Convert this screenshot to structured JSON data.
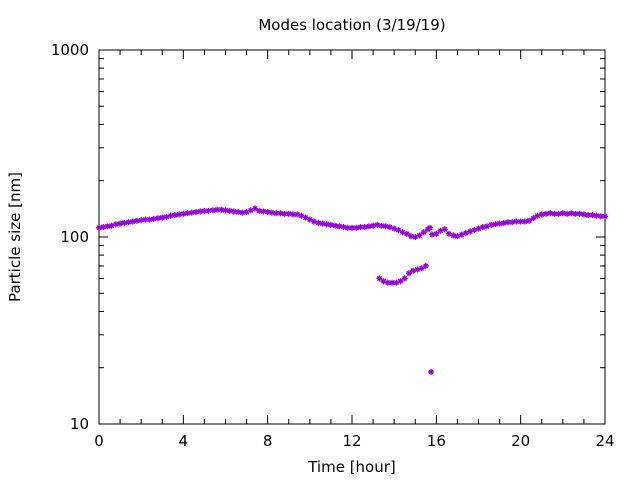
{
  "chart_data": {
    "type": "scatter",
    "title": "Modes location (3/19/19)",
    "xlabel": "Time [hour]",
    "ylabel": "Particle size [nm]",
    "xlim": [
      0,
      24
    ],
    "ylim": [
      10,
      1000
    ],
    "yscale": "log",
    "grid": false,
    "legend": "none",
    "marker_color": "#9400d3",
    "xticks": [
      0,
      4,
      8,
      12,
      16,
      20,
      24
    ],
    "xtick_labels": [
      "0",
      "4",
      "8",
      "12",
      "16",
      "20",
      "24"
    ],
    "yticks": [
      10,
      100,
      1000
    ],
    "ytick_labels": [
      "10",
      "100",
      "1000"
    ],
    "series": [
      {
        "points": [
          [
            0.0,
            112
          ],
          [
            0.2,
            113
          ],
          [
            0.4,
            114
          ],
          [
            0.6,
            115
          ],
          [
            0.8,
            117
          ],
          [
            1.0,
            118
          ],
          [
            1.2,
            119
          ],
          [
            1.4,
            120
          ],
          [
            1.6,
            121
          ],
          [
            1.8,
            122
          ],
          [
            2.0,
            123
          ],
          [
            2.2,
            124
          ],
          [
            2.4,
            124
          ],
          [
            2.6,
            125
          ],
          [
            2.8,
            126
          ],
          [
            3.0,
            127
          ],
          [
            3.2,
            128
          ],
          [
            3.4,
            130
          ],
          [
            3.6,
            131
          ],
          [
            3.8,
            132
          ],
          [
            4.0,
            133
          ],
          [
            4.2,
            134
          ],
          [
            4.4,
            135
          ],
          [
            4.6,
            136
          ],
          [
            4.8,
            137
          ],
          [
            5.0,
            138
          ],
          [
            5.2,
            138
          ],
          [
            5.4,
            139
          ],
          [
            5.6,
            140
          ],
          [
            5.8,
            140
          ],
          [
            6.0,
            139
          ],
          [
            6.2,
            138
          ],
          [
            6.4,
            137
          ],
          [
            6.6,
            136
          ],
          [
            6.8,
            135
          ],
          [
            7.0,
            136
          ],
          [
            7.2,
            139
          ],
          [
            7.4,
            142
          ],
          [
            7.6,
            138
          ],
          [
            7.8,
            137
          ],
          [
            8.0,
            136
          ],
          [
            8.2,
            135
          ],
          [
            8.4,
            134
          ],
          [
            8.6,
            134
          ],
          [
            8.8,
            133
          ],
          [
            9.0,
            133
          ],
          [
            9.2,
            132
          ],
          [
            9.4,
            132
          ],
          [
            9.6,
            130
          ],
          [
            9.8,
            127
          ],
          [
            10.0,
            124
          ],
          [
            10.2,
            121
          ],
          [
            10.4,
            119
          ],
          [
            10.6,
            118
          ],
          [
            10.8,
            117
          ],
          [
            11.0,
            116
          ],
          [
            11.2,
            115
          ],
          [
            11.4,
            114
          ],
          [
            11.6,
            113
          ],
          [
            11.8,
            112
          ],
          [
            12.0,
            112
          ],
          [
            12.2,
            112
          ],
          [
            12.4,
            113
          ],
          [
            12.6,
            113
          ],
          [
            12.8,
            114
          ],
          [
            13.0,
            115
          ],
          [
            13.2,
            116
          ],
          [
            13.4,
            115
          ],
          [
            13.6,
            114
          ],
          [
            13.8,
            113
          ],
          [
            14.0,
            111
          ],
          [
            14.2,
            109
          ],
          [
            14.4,
            106
          ],
          [
            14.6,
            104
          ],
          [
            14.8,
            101
          ],
          [
            15.0,
            100
          ],
          [
            15.2,
            102
          ],
          [
            15.4,
            106
          ],
          [
            15.6,
            110
          ],
          [
            15.7,
            112
          ],
          [
            15.8,
            103
          ],
          [
            16.0,
            104
          ],
          [
            16.2,
            108
          ],
          [
            16.4,
            110
          ],
          [
            16.6,
            104
          ],
          [
            16.8,
            102
          ],
          [
            17.0,
            101
          ],
          [
            17.2,
            103
          ],
          [
            17.4,
            105
          ],
          [
            17.6,
            107
          ],
          [
            17.8,
            109
          ],
          [
            18.0,
            111
          ],
          [
            18.2,
            113
          ],
          [
            18.4,
            114
          ],
          [
            18.6,
            116
          ],
          [
            18.8,
            117
          ],
          [
            19.0,
            118
          ],
          [
            19.2,
            119
          ],
          [
            19.4,
            120
          ],
          [
            19.6,
            120
          ],
          [
            19.8,
            121
          ],
          [
            20.0,
            121
          ],
          [
            20.2,
            121
          ],
          [
            20.4,
            122
          ],
          [
            20.6,
            126
          ],
          [
            20.8,
            130
          ],
          [
            21.0,
            132
          ],
          [
            21.2,
            133
          ],
          [
            21.4,
            134
          ],
          [
            21.6,
            133
          ],
          [
            21.8,
            133
          ],
          [
            22.0,
            134
          ],
          [
            22.2,
            133
          ],
          [
            22.4,
            134
          ],
          [
            22.6,
            133
          ],
          [
            22.8,
            133
          ],
          [
            23.0,
            132
          ],
          [
            23.2,
            131
          ],
          [
            23.4,
            131
          ],
          [
            23.6,
            130
          ],
          [
            23.8,
            129
          ],
          [
            24.0,
            129
          ]
        ]
      },
      {
        "points": [
          [
            13.3,
            60
          ],
          [
            13.5,
            58
          ],
          [
            13.7,
            57
          ],
          [
            13.9,
            57
          ],
          [
            14.1,
            57
          ],
          [
            14.3,
            58
          ],
          [
            14.5,
            60
          ],
          [
            14.7,
            64
          ],
          [
            14.9,
            66
          ],
          [
            15.1,
            67
          ],
          [
            15.3,
            68
          ],
          [
            15.5,
            70
          ]
        ]
      },
      {
        "points": [
          [
            15.75,
            19
          ]
        ]
      }
    ]
  }
}
